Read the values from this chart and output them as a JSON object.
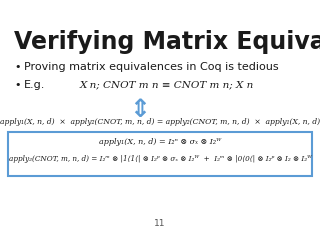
{
  "title": "Verifying Matrix Equivalences",
  "bullet1": "Proving matrix equivalences in Coq is tedious",
  "bullet2_label": "E.g.",
  "bullet2_eq": "X n; CNOT m n ≡ CNOT m n; X n",
  "equiv_line": "apply₁(X, n, d)  ×  apply₂(CNOT, m, n, d) = apply₂(CNOT, m, n, d)  ×  apply₁(X, n, d)",
  "box_line1": "apply₁(X, n, d) = I₂ⁿ ⊗ σₓ ⊗ I₂ᵂ",
  "box_line2": "apply₂(CNOT, m, n, d) = I₂ᵐ ⊗ |1⟨1⟨| ⊗ I₂ᵖ ⊗ σₓ ⊗ I₂ᵂ  +  I₂ᵐ ⊗ |0⟨0⟨| ⊗ I₂ᵖ ⊗ I₂ ⊗ I₂ᵂ",
  "page_number": "11",
  "bg_color": "#ffffff",
  "box_border_color": "#5b9bd5",
  "title_color": "#1a1a1a",
  "text_color": "#1a1a1a",
  "arrow_color": "#5b9bd5"
}
